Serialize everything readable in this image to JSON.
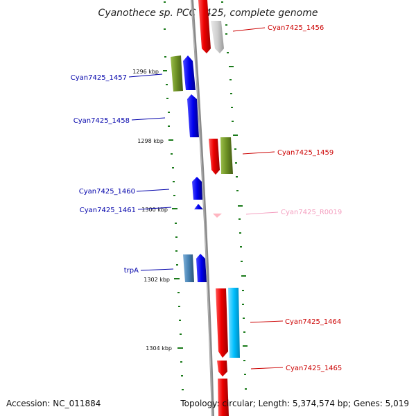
{
  "title": "Cyanothece sp. PCC 7425, complete genome",
  "footer": {
    "accession": "Accession: NC_011884",
    "topology": "Topology: circular; Length: 5,374,574 bp; Genes: 5,019"
  },
  "kbp_labels": [
    "1296 kbp",
    "1298 kbp",
    "1300 kbp",
    "1302 kbp",
    "1304 kbp"
  ],
  "genes": [
    {
      "name": "Cyan7425_1456",
      "color": "#cc0000"
    },
    {
      "name": "Cyan7425_1457",
      "color": "#0000aa"
    },
    {
      "name": "Cyan7425_1458",
      "color": "#0000aa"
    },
    {
      "name": "Cyan7425_1459",
      "color": "#cc0000"
    },
    {
      "name": "Cyan7425_1460",
      "color": "#0000aa"
    },
    {
      "name": "Cyan7425_1461",
      "color": "#0000aa"
    },
    {
      "name": "Cyan7425_R0019",
      "color": "#f4a0c0"
    },
    {
      "name": "trpA",
      "color": "#0000aa"
    },
    {
      "name": "Cyan7425_1464",
      "color": "#cc0000"
    },
    {
      "name": "Cyan7425_1465",
      "color": "#cc0000"
    }
  ],
  "colors": {
    "backbone": "#8a8a8a",
    "tick": "#1a7a1a",
    "red_feature": "#ee0000",
    "grey_feature": "#c8c8c8",
    "olive_feature": "#6b8e23",
    "blue_feature": "#0000ee",
    "steel_feature": "#4682b4",
    "cyan_feature": "#00bfff",
    "pink_feature": "#ffb6c1"
  }
}
